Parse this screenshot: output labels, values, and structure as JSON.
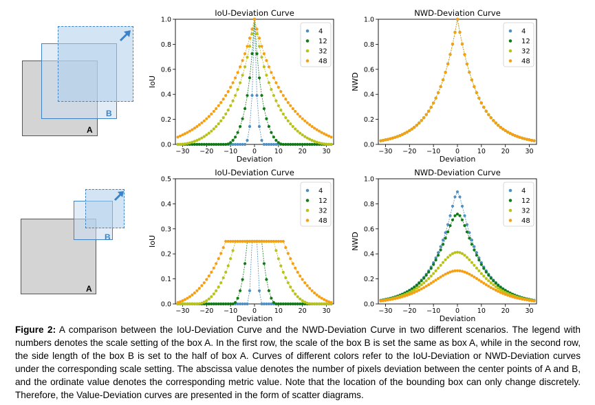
{
  "diagrams": [
    {
      "label_a": "A",
      "label_b": "B"
    },
    {
      "label_a": "A",
      "label_b": "B"
    }
  ],
  "colors": {
    "s4": "#4f8fc2",
    "s12": "#127a14",
    "s32": "#b8c21a",
    "s48": "#f5a014"
  },
  "chart_data": [
    {
      "type": "scatter",
      "title": "IoU-Deviation Curve",
      "xlabel": "Deviation",
      "ylabel": "IoU",
      "xlim": [
        -33,
        33
      ],
      "ylim": [
        0,
        1.0
      ],
      "xticks": [
        -30,
        -20,
        -10,
        0,
        10,
        20,
        30
      ],
      "yticks": [
        0.0,
        0.2,
        0.4,
        0.6,
        0.8,
        1.0
      ],
      "x": "integer deviations from -32 to 32",
      "metric": "iou",
      "b_ratio": 1,
      "legend_position": "top-right",
      "series": [
        {
          "name": "4",
          "scale": 4
        },
        {
          "name": "12",
          "scale": 12
        },
        {
          "name": "32",
          "scale": 32
        },
        {
          "name": "48",
          "scale": 48
        }
      ]
    },
    {
      "type": "scatter",
      "title": "NWD-Deviation Curve",
      "xlabel": "Deviation",
      "ylabel": "NWD",
      "xlim": [
        -33,
        33
      ],
      "ylim": [
        0,
        1.0
      ],
      "xticks": [
        -30,
        -20,
        -10,
        0,
        10,
        20,
        30
      ],
      "yticks": [
        0.0,
        0.2,
        0.4,
        0.6,
        0.8,
        1.0
      ],
      "metric": "nwd",
      "b_ratio": 1,
      "legend_position": "top-right",
      "series": [
        {
          "name": "4",
          "scale": 4
        },
        {
          "name": "12",
          "scale": 12
        },
        {
          "name": "32",
          "scale": 32
        },
        {
          "name": "48",
          "scale": 48
        }
      ]
    },
    {
      "type": "scatter",
      "title": "IoU-Deviation Curve",
      "xlabel": "Deviation",
      "ylabel": "IoU",
      "xlim": [
        -33,
        33
      ],
      "ylim": [
        0,
        0.5
      ],
      "xticks": [
        -30,
        -20,
        -10,
        0,
        10,
        20,
        30
      ],
      "yticks": [
        0.0,
        0.1,
        0.2,
        0.3,
        0.4,
        0.5
      ],
      "metric": "iou",
      "b_ratio": 0.5,
      "legend_position": "top-right",
      "series": [
        {
          "name": "4",
          "scale": 4
        },
        {
          "name": "12",
          "scale": 12
        },
        {
          "name": "32",
          "scale": 32
        },
        {
          "name": "48",
          "scale": 48
        }
      ]
    },
    {
      "type": "scatter",
      "title": "NWD-Deviation Curve",
      "xlabel": "Deviation",
      "ylabel": "NWD",
      "xlim": [
        -33,
        33
      ],
      "ylim": [
        0,
        1.0
      ],
      "xticks": [
        -30,
        -20,
        -10,
        0,
        10,
        20,
        30
      ],
      "yticks": [
        0.0,
        0.2,
        0.4,
        0.6,
        0.8,
        1.0
      ],
      "metric": "nwd",
      "b_ratio": 0.5,
      "legend_position": "top-right",
      "series": [
        {
          "name": "4",
          "scale": 4
        },
        {
          "name": "12",
          "scale": 12
        },
        {
          "name": "32",
          "scale": 32
        },
        {
          "name": "48",
          "scale": 48
        }
      ]
    }
  ],
  "caption": {
    "fig_label": "Figure 2:",
    "text": " A comparison between the IoU-Deviation Curve and the NWD-Deviation Curve in two different scenarios. The legend with numbers denotes the scale setting of the box A. In the first row, the scale of the box B is set the same as box A, while in the second row, the side length of the box B is set to the half of box A. Curves of different colors refer to the IoU-Deviation or NWD-Deviation curves under the corresponding scale setting. The abscissa value denotes the number of pixels deviation between the center points of A and B, and the ordinate value denotes the corresponding metric value. Note that the location of the bounding box can only change discretely. Therefore, the Value-Deviation curves are presented in the form of scatter diagrams."
  }
}
